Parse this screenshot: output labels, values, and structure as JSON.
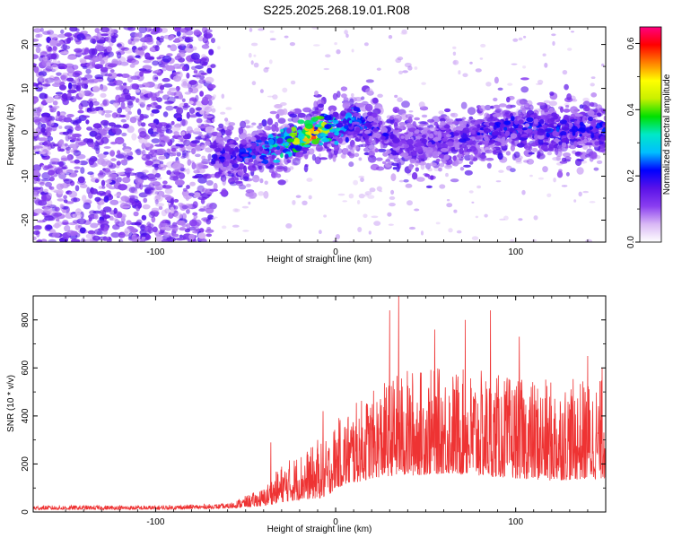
{
  "figure": {
    "title": "S225.2025.268.19.01.R08"
  },
  "chart_data": [
    {
      "type": "heatmap",
      "name": "spectrogram",
      "title": "S225.2025.268.19.01.R08",
      "xlabel": "Height of straight line (km)",
      "ylabel": "Frequency (Hz)",
      "xlim": [
        -168,
        150
      ],
      "ylim": [
        -25,
        24
      ],
      "xticks": [
        -100,
        0,
        100
      ],
      "yticks": [
        -20,
        -10,
        0,
        10,
        20
      ],
      "colorbar": {
        "label": "Normalized spectral amplitude",
        "range": [
          0.0,
          0.65
        ],
        "ticks": [
          0.0,
          0.2,
          0.4,
          0.6
        ],
        "colormap": [
          "#ffffff",
          "#d9b8f5",
          "#8a3ef0",
          "#5a12e8",
          "#0000ff",
          "#00bfff",
          "#00e8c8",
          "#00e000",
          "#c8f000",
          "#ffff00",
          "#ff8000",
          "#ff0000",
          "#ff0080"
        ]
      },
      "noise_region_x": [
        -168,
        -68
      ],
      "ridge": {
        "x": [
          -68,
          -55,
          -40,
          -25,
          -12,
          0,
          10,
          25,
          40,
          60,
          80,
          100,
          120,
          150
        ],
        "freq": [
          -5,
          -6,
          -4,
          -2,
          0,
          1,
          3,
          0,
          -3,
          -2,
          0,
          1,
          0,
          1
        ],
        "peak_amplitude": [
          0.22,
          0.25,
          0.3,
          0.45,
          0.6,
          0.35,
          0.3,
          0.22,
          0.18,
          0.2,
          0.24,
          0.26,
          0.25,
          0.25
        ]
      }
    },
    {
      "type": "line",
      "name": "snr",
      "xlabel": "Height of straight line (km)",
      "ylabel": "SNR (10 * v/v)",
      "xlim": [
        -168,
        150
      ],
      "ylim": [
        0,
        900
      ],
      "xticks": [
        -100,
        0,
        100
      ],
      "yticks": [
        0,
        200,
        400,
        600,
        800
      ],
      "series": [
        {
          "name": "SNR",
          "color": "#ee3333",
          "envelope": {
            "x": [
              -168,
              -100,
              -60,
              -40,
              -30,
              -20,
              -5,
              0,
              10,
              20,
              30,
              40,
              60,
              80,
              100,
              120,
              150
            ],
            "base": [
              10,
              10,
              15,
              25,
              40,
              50,
              60,
              100,
              120,
              140,
              150,
              150,
              160,
              150,
              140,
              130,
              140
            ],
            "top": [
              28,
              28,
              35,
              100,
              200,
              250,
              300,
              380,
              450,
              500,
              560,
              600,
              600,
              590,
              560,
              550,
              560
            ]
          },
          "peaks": [
            [
              -36,
              290
            ],
            [
              -10,
              300
            ],
            [
              -7,
              420
            ],
            [
              17,
              440
            ],
            [
              30,
              840
            ],
            [
              35,
              900
            ],
            [
              55,
              760
            ],
            [
              72,
              800
            ],
            [
              86,
              840
            ],
            [
              102,
              730
            ],
            [
              140,
              650
            ],
            [
              148,
              600
            ]
          ]
        }
      ]
    }
  ]
}
